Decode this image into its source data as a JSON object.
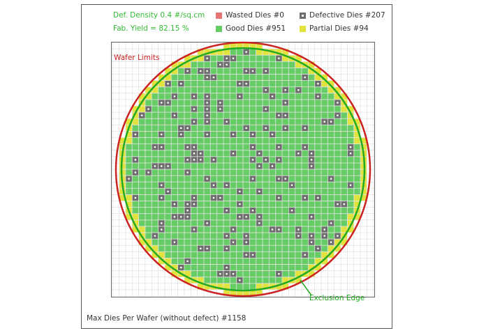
{
  "defect_density": "Def. Density 0.4 #/sq.cm",
  "fab_yield": "Fab. Yield = 82.15 %",
  "legend": {
    "wasted": {
      "label": "Wasted Dies  #0",
      "color": "#e57373"
    },
    "defective": {
      "label": "Defective Dies  #207",
      "color": "#6d6d6d"
    },
    "good": {
      "label": "Good Dies #951",
      "color": "#66cc66"
    },
    "partial": {
      "label": "Partial Dies #94",
      "color": "#e2e23c"
    }
  },
  "wafer_limits_label": "Wafer Limits",
  "exclusion_edge_label": "Exclusion Edge",
  "max_dies": "Max Dies Per Wafer (without defect) #1158",
  "colors": {
    "wafer_limit": "#cc2222",
    "exclusion_edge": "#22aa22",
    "green_text": "#33bb33",
    "grid_line": "#d9d9d9"
  }
}
